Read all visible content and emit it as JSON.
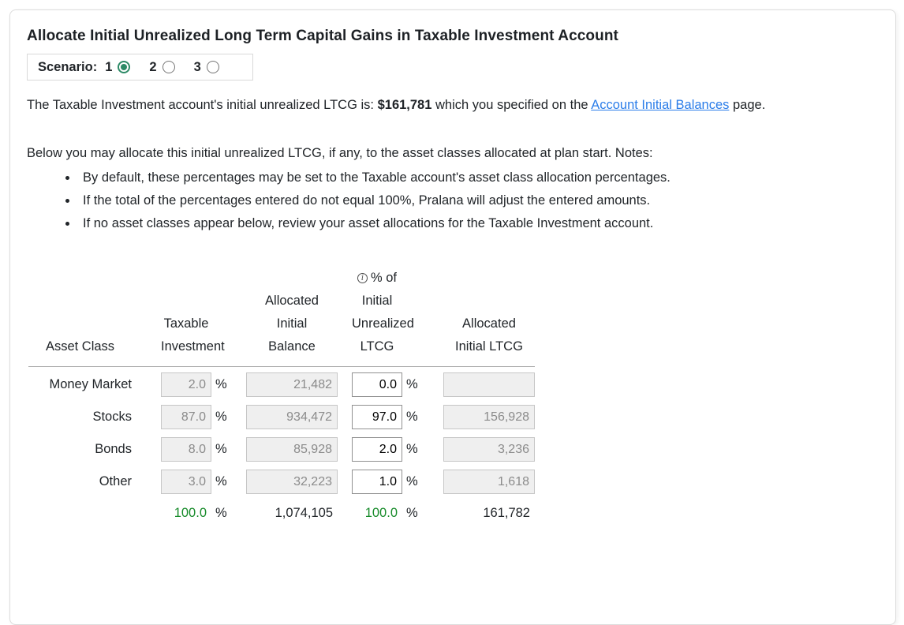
{
  "page": {
    "title": "Allocate Initial Unrealized Long Term Capital Gains in Taxable Investment Account"
  },
  "scenario": {
    "label": "Scenario:",
    "options": [
      {
        "label": "1",
        "selected": true
      },
      {
        "label": "2",
        "selected": false
      },
      {
        "label": "3",
        "selected": false
      }
    ]
  },
  "intro": {
    "text_before": "The Taxable Investment account's initial unrealized LTCG is: ",
    "amount": "$161,781",
    "text_middle": " which you specified on the ",
    "link_text": "Account Initial Balances",
    "text_after": " page."
  },
  "notes": {
    "lead": "Below you may allocate this initial unrealized LTCG, if any, to the asset classes allocated at plan start. Notes:",
    "bullets": [
      "By default, these percentages may be set to the Taxable account's asset class allocation percentages.",
      "If the total of the percentages entered do not equal 100%, Pralana will adjust the entered amounts.",
      "If no asset classes appear below, review your asset allocations for the Taxable Investment account."
    ]
  },
  "table": {
    "headers": {
      "asset_class": "Asset Class",
      "taxable_investment": "Taxable\nInvestment",
      "allocated_initial_balance": "Allocated\nInitial\nBalance",
      "pct_initial_unrealized_ltcg": "% of\nInitial\nUnrealized\nLTCG",
      "allocated_initial_ltcg": "Allocated\nInitial LTCG",
      "info_icon_glyph": "i"
    },
    "percent_sign": "%",
    "rows": [
      {
        "asset_class": "Money Market",
        "taxable_investment_pct": "2.0",
        "allocated_initial_balance": "21,482",
        "pct_initial_unrealized_ltcg": "0.0",
        "allocated_initial_ltcg": ""
      },
      {
        "asset_class": "Stocks",
        "taxable_investment_pct": "87.0",
        "allocated_initial_balance": "934,472",
        "pct_initial_unrealized_ltcg": "97.0",
        "allocated_initial_ltcg": "156,928"
      },
      {
        "asset_class": "Bonds",
        "taxable_investment_pct": "8.0",
        "allocated_initial_balance": "85,928",
        "pct_initial_unrealized_ltcg": "2.0",
        "allocated_initial_ltcg": "3,236"
      },
      {
        "asset_class": "Other",
        "taxable_investment_pct": "3.0",
        "allocated_initial_balance": "32,223",
        "pct_initial_unrealized_ltcg": "1.0",
        "allocated_initial_ltcg": "1,618"
      }
    ],
    "totals": {
      "taxable_investment_pct": "100.0",
      "allocated_initial_balance": "1,074,105",
      "pct_initial_unrealized_ltcg": "100.0",
      "allocated_initial_ltcg": "161,782"
    }
  },
  "colors": {
    "link_blue": "#2b7de9",
    "total_green": "#178b2a",
    "radio_green": "#2d8a66"
  }
}
